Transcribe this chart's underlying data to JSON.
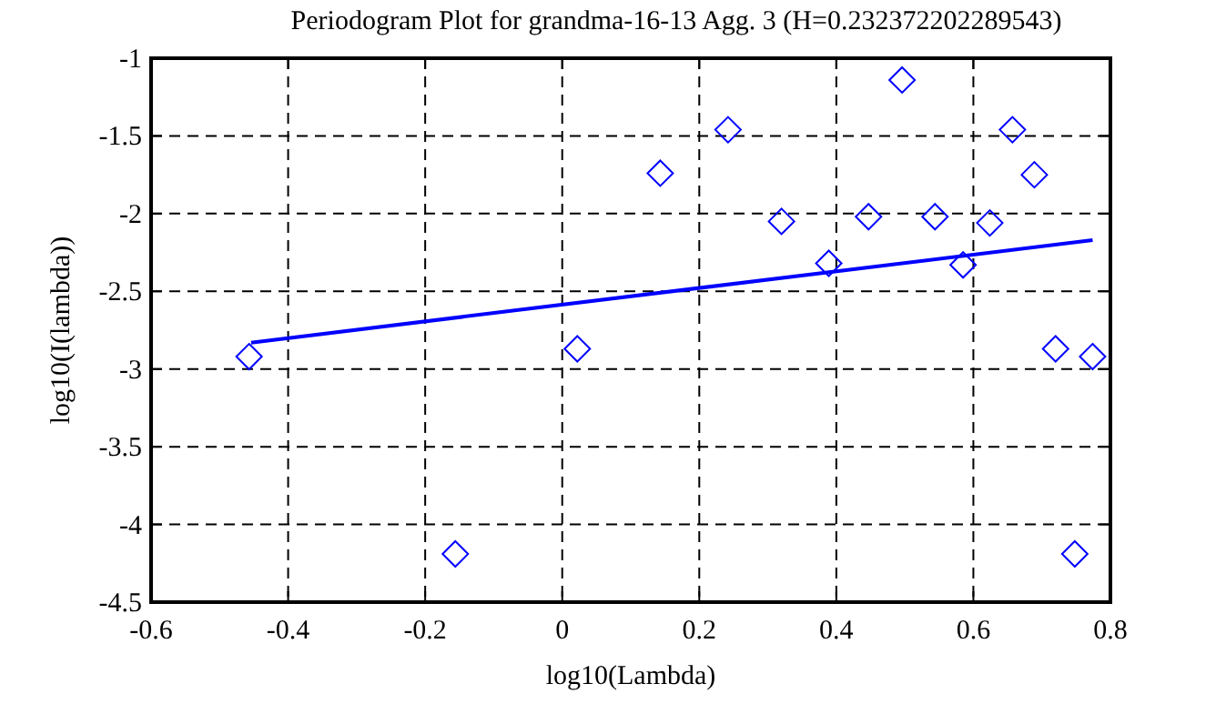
{
  "chart_data": {
    "type": "scatter",
    "title": "Periodogram Plot for grandma-16-13 Agg. 3 (H=0.232372202289543)",
    "xlabel": "log10(Lambda)",
    "ylabel": "log10(I(lambda))",
    "xlim": [
      -0.6,
      0.8
    ],
    "ylim": [
      -4.5,
      -1
    ],
    "xticks": [
      -0.6,
      -0.4,
      -0.2,
      0,
      0.2,
      0.4,
      0.6,
      0.8
    ],
    "yticks": [
      -4.5,
      -4,
      -3.5,
      -3,
      -2.5,
      -2,
      -1.5,
      -1
    ],
    "grid": true,
    "marker": "diamond",
    "series": [
      {
        "color": "#0000ff",
        "x": [
          -0.457,
          -0.156,
          0.022,
          0.143,
          0.242,
          0.32,
          0.389,
          0.447,
          0.496,
          0.544,
          0.585,
          0.624,
          0.657,
          0.689,
          0.72,
          0.748,
          0.774
        ],
        "values": [
          -2.92,
          -4.19,
          -2.87,
          -1.74,
          -1.46,
          -2.05,
          -2.32,
          -2.02,
          -1.14,
          -2.02,
          -2.33,
          -2.06,
          -1.46,
          -1.75,
          -2.87,
          -4.19,
          -2.92
        ]
      },
      {
        "type": "line",
        "color": "#0000ff",
        "marker": "none",
        "line_style": "solid",
        "x": [
          -0.454,
          0.774
        ],
        "values": [
          -2.83,
          -2.17
        ]
      }
    ]
  }
}
